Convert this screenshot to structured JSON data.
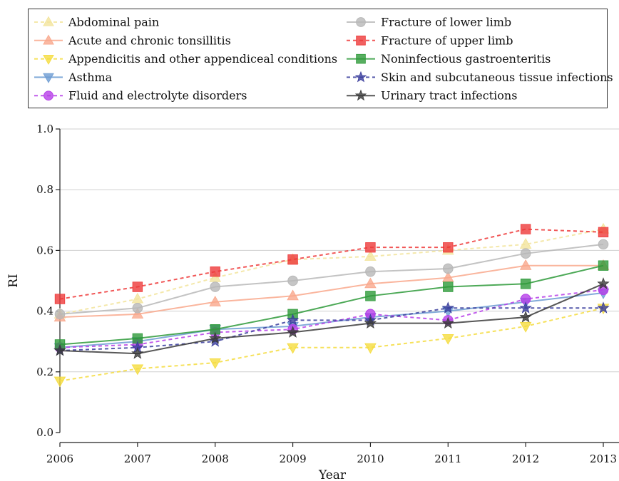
{
  "chart_data": {
    "type": "line",
    "xlabel": "Year",
    "ylabel": "RI",
    "x": [
      2006,
      2007,
      2008,
      2009,
      2010,
      2011,
      2012,
      2013
    ],
    "x_tick_labels": [
      "2006",
      "2007",
      "2008",
      "2009",
      "2010",
      "2011",
      "2012",
      "2013"
    ],
    "ylim": [
      0.0,
      1.0
    ],
    "y_ticks": [
      0.0,
      0.2,
      0.4,
      0.6,
      0.8,
      1.0
    ],
    "y_tick_labels": [
      "0.0",
      "0.2",
      "0.4",
      "0.6",
      "0.8",
      "1.0"
    ],
    "grid": "horizontal",
    "legend_position": "top",
    "legend_columns": 2,
    "series": [
      {
        "name": "Abdominal pain",
        "color": "#f2e49b",
        "marker": "triangle-up",
        "line": "dashed",
        "values": [
          0.39,
          0.44,
          0.51,
          0.57,
          0.58,
          0.6,
          0.62,
          0.67
        ]
      },
      {
        "name": "Acute and chronic tonsillitis",
        "color": "#f9a88c",
        "marker": "triangle-up",
        "line": "solid",
        "values": [
          0.38,
          0.39,
          0.43,
          0.45,
          0.49,
          0.51,
          0.55,
          0.55
        ]
      },
      {
        "name": "Appendicitis and other appendiceal conditions",
        "color": "#f5dc3e",
        "marker": "triangle-down",
        "line": "dashed",
        "values": [
          0.17,
          0.21,
          0.23,
          0.28,
          0.28,
          0.31,
          0.35,
          0.41
        ]
      },
      {
        "name": "Asthma",
        "color": "#6c9bd2",
        "marker": "triangle-down",
        "line": "solid",
        "values": [
          0.28,
          0.3,
          0.34,
          0.35,
          0.38,
          0.4,
          0.43,
          0.46
        ]
      },
      {
        "name": "Fluid and electrolyte disorders",
        "color": "#b63ee8",
        "marker": "circle",
        "line": "dashed",
        "values": [
          0.28,
          0.29,
          0.33,
          0.34,
          0.39,
          0.37,
          0.44,
          0.47
        ]
      },
      {
        "name": "Fracture of lower limb",
        "color": "#b8b8b8",
        "marker": "circle",
        "line": "solid",
        "values": [
          0.39,
          0.41,
          0.48,
          0.5,
          0.53,
          0.54,
          0.59,
          0.62
        ]
      },
      {
        "name": "Fracture of upper limb",
        "color": "#ee3a3a",
        "marker": "square",
        "line": "dashed",
        "values": [
          0.44,
          0.48,
          0.53,
          0.57,
          0.61,
          0.61,
          0.67,
          0.66
        ]
      },
      {
        "name": "Noninfectious gastroenteritis",
        "color": "#2e9a3a",
        "marker": "square",
        "line": "solid",
        "values": [
          0.29,
          0.31,
          0.34,
          0.39,
          0.45,
          0.48,
          0.49,
          0.55
        ]
      },
      {
        "name": "Skin and subcutaneous tissue infections",
        "color": "#3a3d9c",
        "marker": "star",
        "line": "dashed",
        "values": [
          0.27,
          0.28,
          0.3,
          0.37,
          0.37,
          0.41,
          0.41,
          0.41
        ]
      },
      {
        "name": "Urinary tract infections",
        "color": "#3a3a3a",
        "marker": "star",
        "line": "solid",
        "values": [
          0.27,
          0.26,
          0.31,
          0.33,
          0.36,
          0.36,
          0.38,
          0.49
        ]
      }
    ]
  }
}
